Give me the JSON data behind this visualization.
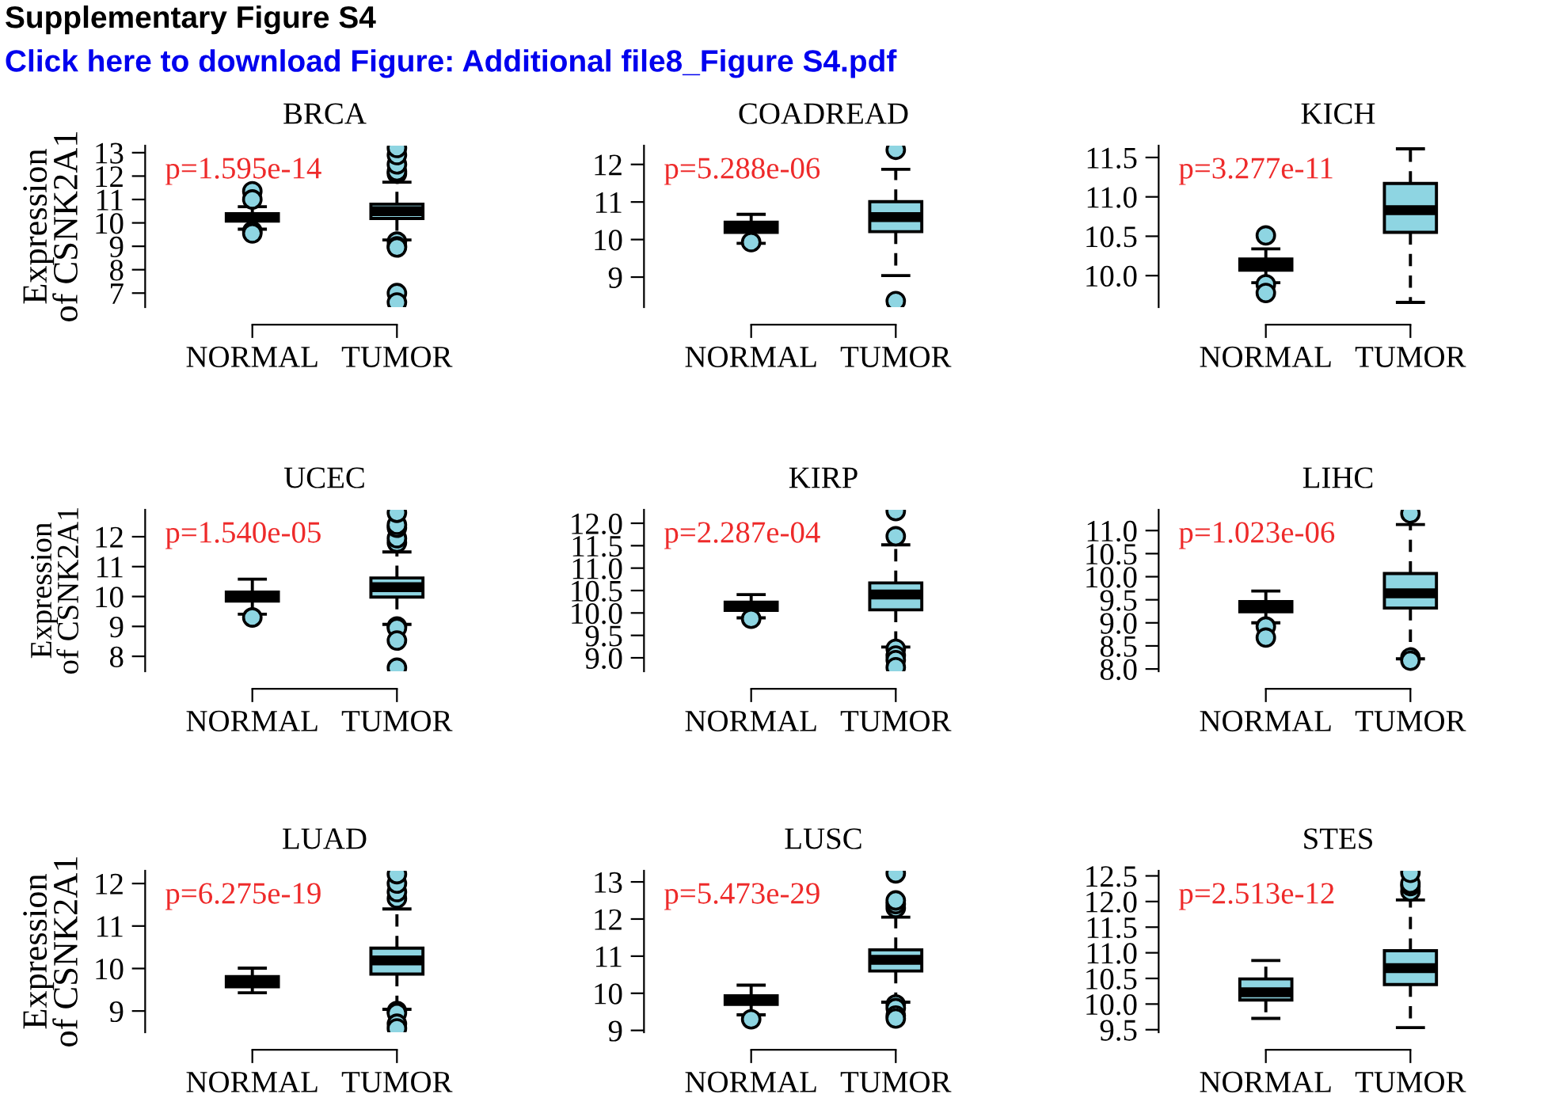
{
  "chart_data": [
    {
      "type": "box",
      "title": "BRCA",
      "ylabel": "Expression\nof CSNK2A1",
      "categories": [
        "NORMAL",
        "TUMOR"
      ],
      "ylim": [
        6.4,
        13.3
      ],
      "yticks": [
        7,
        8,
        9,
        10,
        11,
        12,
        13
      ],
      "grid": false,
      "legend": false,
      "annotations": [
        "Supplementary Figure S4",
        "Click here to download Figure: Additional file8_Figure S4.pdf",
        "p=1.595e-14"
      ],
      "series": [
        {
          "color": "#8ed5e2",
          "boxes": [
            {
              "low": 9.73,
              "q1": 10.08,
              "median": 10.25,
              "q3": 10.39,
              "high": 10.69,
              "outliers": [
                11.35,
                11.0,
                9.65,
                9.55
              ]
            },
            {
              "low": 9.27,
              "q1": 10.19,
              "median": 10.5,
              "q3": 10.8,
              "high": 11.74,
              "outliers": [
                12.1,
                12.2,
                12.5,
                12.9,
                13.2,
                9.2,
                9.0,
                8.95,
                7.0,
                6.6
              ]
            }
          ]
        }
      ]
    },
    {
      "type": "box",
      "title": "COADREAD",
      "categories": [
        "NORMAL",
        "TUMOR"
      ],
      "ylim": [
        8.2,
        12.5
      ],
      "yticks": [
        9,
        10,
        11,
        12
      ],
      "grid": false,
      "legend": false,
      "annotations": [
        "p=5.288e-06"
      ],
      "series": [
        {
          "color": "#8ed5e2",
          "boxes": [
            {
              "low": 9.9,
              "q1": 10.19,
              "median": 10.31,
              "q3": 10.46,
              "high": 10.67,
              "outliers": [
                9.93
              ]
            },
            {
              "low": 9.04,
              "q1": 10.21,
              "median": 10.6,
              "q3": 11.01,
              "high": 11.87,
              "outliers": [
                12.39,
                8.36
              ]
            }
          ]
        }
      ]
    },
    {
      "type": "box",
      "title": "KICH",
      "categories": [
        "NORMAL",
        "TUMOR"
      ],
      "ylim": [
        9.6,
        11.65
      ],
      "yticks": [
        {
          "value": 10.0,
          "label": "10.0"
        },
        {
          "value": 10.5,
          "label": "10.5"
        },
        {
          "value": 11.0,
          "label": "11.0"
        },
        {
          "value": 11.5,
          "label": "11.5"
        }
      ],
      "grid": false,
      "legend": false,
      "annotations": [
        "p=3.277e-11"
      ],
      "series": [
        {
          "color": "#8ed5e2",
          "boxes": [
            {
              "low": 9.91,
              "q1": 10.07,
              "median": 10.14,
              "q3": 10.21,
              "high": 10.34,
              "outliers": [
                10.51,
                9.89,
                9.78
              ]
            },
            {
              "low": 9.66,
              "q1": 10.55,
              "median": 10.83,
              "q3": 11.17,
              "high": 11.61
            }
          ]
        }
      ]
    },
    {
      "type": "box",
      "title": "UCEC",
      "ylabel": "Expression\nof CSNK2A1",
      "categories": [
        "NORMAL",
        "TUMOR"
      ],
      "ylim": [
        7.5,
        12.9
      ],
      "yticks": [
        8,
        9,
        10,
        11,
        12
      ],
      "grid": false,
      "legend": false,
      "annotations": [
        "p=1.540e-05"
      ],
      "series": [
        {
          "color": "#8ed5e2",
          "boxes": [
            {
              "low": 9.41,
              "q1": 9.85,
              "median": 10.0,
              "q3": 10.15,
              "high": 10.58,
              "outliers": [
                9.3
              ]
            },
            {
              "low": 9.07,
              "q1": 9.98,
              "median": 10.31,
              "q3": 10.62,
              "high": 11.49,
              "outliers": [
                11.8,
                11.95,
                12.3,
                12.4,
                12.8,
                9.0,
                8.95,
                8.53,
                7.62
              ]
            }
          ]
        }
      ]
    },
    {
      "type": "box",
      "title": "KIRP",
      "categories": [
        "NORMAL",
        "TUMOR"
      ],
      "ylim": [
        8.7,
        12.3
      ],
      "yticks": [
        {
          "value": 9.0,
          "label": "9.0"
        },
        {
          "value": 9.5,
          "label": "9.5"
        },
        {
          "value": 10.0,
          "label": "10.0"
        },
        {
          "value": 10.5,
          "label": "10.5"
        },
        {
          "value": 11.0,
          "label": "11.0"
        },
        {
          "value": 11.5,
          "label": "11.5"
        },
        {
          "value": 12.0,
          "label": "12.0"
        }
      ],
      "grid": false,
      "legend": false,
      "annotations": [
        "p=2.287e-04"
      ],
      "series": [
        {
          "color": "#8ed5e2",
          "boxes": [
            {
              "low": 9.89,
              "q1": 10.06,
              "median": 10.15,
              "q3": 10.24,
              "high": 10.41,
              "outliers": [
                9.87
              ]
            },
            {
              "low": 9.24,
              "q1": 10.07,
              "median": 10.41,
              "q3": 10.67,
              "high": 11.52,
              "outliers": [
                11.71,
                12.27,
                9.2,
                9.05,
                8.95,
                8.79
              ]
            }
          ]
        }
      ]
    },
    {
      "type": "box",
      "title": "LIHC",
      "categories": [
        "NORMAL",
        "TUMOR"
      ],
      "ylim": [
        7.95,
        11.45
      ],
      "yticks": [
        {
          "value": 8.0,
          "label": "8.0"
        },
        {
          "value": 8.5,
          "label": "8.5"
        },
        {
          "value": 9.0,
          "label": "9.0"
        },
        {
          "value": 9.5,
          "label": "9.5"
        },
        {
          "value": 10.0,
          "label": "10.0"
        },
        {
          "value": 10.5,
          "label": "10.5"
        },
        {
          "value": 11.0,
          "label": "11.0"
        }
      ],
      "grid": false,
      "legend": false,
      "annotations": [
        "p=1.023e-06"
      ],
      "series": [
        {
          "color": "#8ed5e2",
          "boxes": [
            {
              "low": 9.0,
              "q1": 9.24,
              "median": 9.38,
              "q3": 9.46,
              "high": 9.69,
              "outliers": [
                8.92,
                8.68
              ]
            },
            {
              "low": 8.22,
              "q1": 9.32,
              "median": 9.64,
              "q3": 10.07,
              "high": 11.13,
              "outliers": [
                11.37,
                8.25,
                8.18
              ]
            }
          ]
        }
      ]
    },
    {
      "type": "box",
      "title": "LUAD",
      "ylabel": "Expression\nof CSNK2A1",
      "categories": [
        "NORMAL",
        "TUMOR"
      ],
      "ylim": [
        8.5,
        12.3
      ],
      "yticks": [
        9,
        10,
        11,
        12
      ],
      "grid": false,
      "legend": false,
      "annotations": [
        "p=6.275e-19"
      ],
      "series": [
        {
          "color": "#8ed5e2",
          "boxes": [
            {
              "low": 9.43,
              "q1": 9.57,
              "median": 9.68,
              "q3": 9.81,
              "high": 10.01
            },
            {
              "low": 9.04,
              "q1": 9.87,
              "median": 10.19,
              "q3": 10.48,
              "high": 11.4,
              "outliers": [
                11.65,
                11.8,
                12.0,
                12.22,
                9.0,
                8.95,
                8.7,
                8.59
              ]
            }
          ]
        }
      ]
    },
    {
      "type": "box",
      "title": "LUSC",
      "categories": [
        "NORMAL",
        "TUMOR"
      ],
      "ylim": [
        8.95,
        13.3
      ],
      "yticks": [
        9,
        10,
        11,
        12,
        13
      ],
      "grid": false,
      "legend": false,
      "annotations": [
        "p=5.473e-29"
      ],
      "series": [
        {
          "color": "#8ed5e2",
          "boxes": [
            {
              "low": 9.42,
              "q1": 9.7,
              "median": 9.82,
              "q3": 9.93,
              "high": 10.22,
              "outliers": [
                9.3
              ]
            },
            {
              "low": 9.76,
              "q1": 10.6,
              "median": 10.9,
              "q3": 11.17,
              "high": 12.05,
              "outliers": [
                12.3,
                12.4,
                12.5,
                13.23,
                9.7,
                9.6,
                9.4,
                9.32
              ]
            }
          ]
        }
      ]
    },
    {
      "type": "box",
      "title": "STES",
      "categories": [
        "NORMAL",
        "TUMOR"
      ],
      "ylim": [
        9.45,
        12.6
      ],
      "yticks": [
        {
          "value": 9.5,
          "label": "9.5"
        },
        {
          "value": 10.0,
          "label": "10.0"
        },
        {
          "value": 10.5,
          "label": "10.5"
        },
        {
          "value": 11.0,
          "label": "11.0"
        },
        {
          "value": 11.5,
          "label": "11.5"
        },
        {
          "value": 12.0,
          "label": "12.0"
        },
        {
          "value": 12.5,
          "label": "12.5"
        }
      ],
      "grid": false,
      "legend": false,
      "annotations": [
        "p=2.513e-12"
      ],
      "series": [
        {
          "color": "#8ed5e2",
          "boxes": [
            {
              "low": 9.72,
              "q1": 10.08,
              "median": 10.23,
              "q3": 10.49,
              "high": 10.85
            },
            {
              "low": 9.54,
              "q1": 10.38,
              "median": 10.7,
              "q3": 11.04,
              "high": 12.03,
              "outliers": [
                12.2,
                12.3,
                12.35,
                12.56
              ]
            }
          ]
        }
      ]
    }
  ]
}
